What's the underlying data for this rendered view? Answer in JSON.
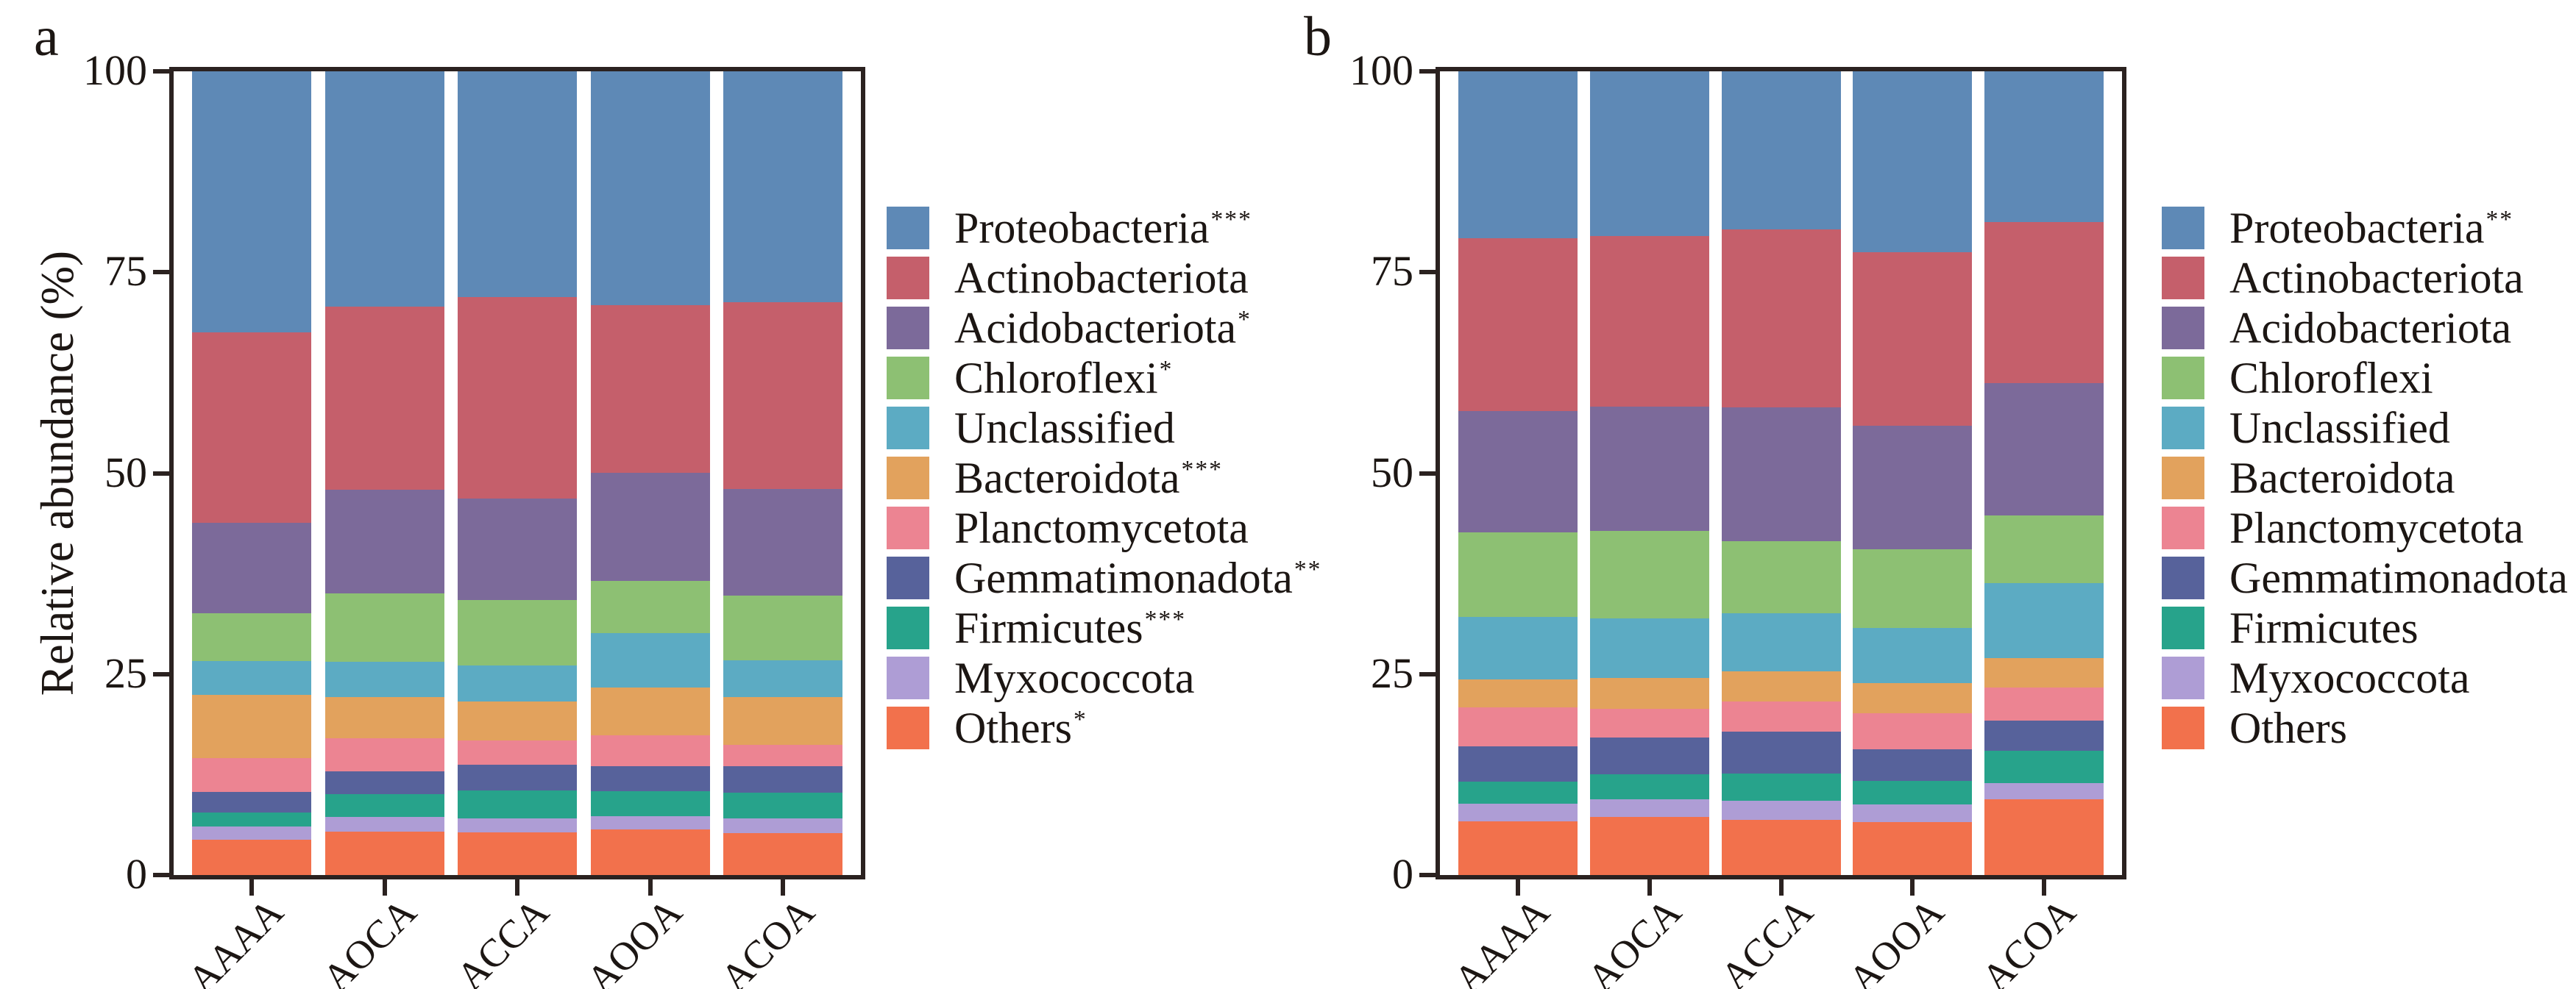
{
  "figure_title": "",
  "chart_data": [
    {
      "type": "bar",
      "stacked": true,
      "panel": "a",
      "panel_label": "a",
      "ylabel": "Relative abundance (%)",
      "xlabel": "",
      "ylim": [
        0,
        100
      ],
      "yticks": [
        0,
        25,
        50,
        75,
        100
      ],
      "grid": false,
      "legend_position": "right",
      "categories": [
        "AAAA",
        "AOCA",
        "ACCA",
        "AOOA",
        "ACOA"
      ],
      "series": [
        {
          "name": "Proteobacteria",
          "stars": "***",
          "color": "#5e89b6",
          "values": [
            32.5,
            29.3,
            28.1,
            29.1,
            28.7
          ]
        },
        {
          "name": "Actinobacteriota",
          "stars": "",
          "color": "#c55f6b",
          "values": [
            23.7,
            22.8,
            25.1,
            20.9,
            23.3
          ]
        },
        {
          "name": "Acidobacteriota",
          "stars": "*",
          "color": "#7c6a9a",
          "values": [
            11.2,
            12.9,
            12.6,
            13.4,
            13.2
          ]
        },
        {
          "name": "Chloroflexi",
          "stars": "*",
          "color": "#8dc073",
          "values": [
            6.0,
            8.5,
            8.1,
            6.5,
            8.1
          ]
        },
        {
          "name": "Unclassified",
          "stars": "",
          "color": "#5cabc3",
          "values": [
            4.2,
            4.4,
            4.5,
            6.8,
            4.6
          ]
        },
        {
          "name": "Bacteroidota",
          "stars": "***",
          "color": "#e2a25d",
          "values": [
            7.9,
            5.1,
            4.9,
            5.9,
            5.9
          ]
        },
        {
          "name": "Planctomycetota",
          "stars": "",
          "color": "#ec8492",
          "values": [
            4.2,
            4.1,
            3.0,
            3.9,
            2.7
          ]
        },
        {
          "name": "Gemmatimonadota",
          "stars": "**",
          "color": "#57629b",
          "values": [
            2.5,
            2.8,
            3.2,
            3.1,
            3.3
          ]
        },
        {
          "name": "Firmicutes",
          "stars": "***",
          "color": "#27a38b",
          "values": [
            1.8,
            2.9,
            3.5,
            3.1,
            3.2
          ]
        },
        {
          "name": "Myxococcota",
          "stars": "",
          "color": "#ae9dd5",
          "values": [
            1.6,
            1.8,
            1.7,
            1.6,
            1.8
          ]
        },
        {
          "name": "Others",
          "stars": "*",
          "color": "#f2714c",
          "values": [
            4.4,
            5.4,
            5.3,
            5.7,
            5.2
          ]
        }
      ]
    },
    {
      "type": "bar",
      "stacked": true,
      "panel": "b",
      "panel_label": "b",
      "ylabel": "",
      "xlabel": "",
      "ylim": [
        0,
        100
      ],
      "yticks": [
        0,
        25,
        50,
        75,
        100
      ],
      "grid": false,
      "legend_position": "right",
      "categories": [
        "AAAA",
        "AOCA",
        "ACCA",
        "AOOA",
        "ACOA"
      ],
      "series": [
        {
          "name": "Proteobacteria",
          "stars": "**",
          "color": "#5e89b6",
          "values": [
            20.8,
            20.5,
            19.7,
            22.5,
            18.8
          ]
        },
        {
          "name": "Actinobacteriota",
          "stars": "",
          "color": "#c55f6b",
          "values": [
            21.5,
            21.2,
            22.1,
            21.6,
            20.0
          ]
        },
        {
          "name": "Acidobacteriota",
          "stars": "",
          "color": "#7c6a9a",
          "values": [
            15.1,
            15.5,
            16.7,
            15.4,
            16.5
          ]
        },
        {
          "name": "Chloroflexi",
          "stars": "",
          "color": "#8dc073",
          "values": [
            10.5,
            10.9,
            8.9,
            9.8,
            8.4
          ]
        },
        {
          "name": "Unclassified",
          "stars": "",
          "color": "#5cabc3",
          "values": [
            7.8,
            7.4,
            7.3,
            6.8,
            9.3
          ]
        },
        {
          "name": "Bacteroidota",
          "stars": "",
          "color": "#e2a25d",
          "values": [
            3.4,
            3.8,
            3.7,
            3.8,
            3.7
          ]
        },
        {
          "name": "Planctomycetota",
          "stars": "",
          "color": "#ec8492",
          "values": [
            4.9,
            3.6,
            3.8,
            4.5,
            4.1
          ]
        },
        {
          "name": "Gemmatimonadota",
          "stars": "",
          "color": "#57629b",
          "values": [
            4.4,
            4.6,
            5.2,
            3.9,
            3.7
          ]
        },
        {
          "name": "Firmicutes",
          "stars": "",
          "color": "#27a38b",
          "values": [
            2.7,
            3.1,
            3.4,
            2.9,
            4.1
          ]
        },
        {
          "name": "Myxococcota",
          "stars": "",
          "color": "#ae9dd5",
          "values": [
            2.2,
            2.2,
            2.3,
            2.2,
            2.0
          ]
        },
        {
          "name": "Others",
          "stars": "",
          "color": "#f2714c",
          "values": [
            6.7,
            7.2,
            6.9,
            6.6,
            9.4
          ]
        }
      ]
    }
  ],
  "style_colors": {
    "axis_line": "#2b2220",
    "text": "#1c1613",
    "background": "#ffffff"
  }
}
